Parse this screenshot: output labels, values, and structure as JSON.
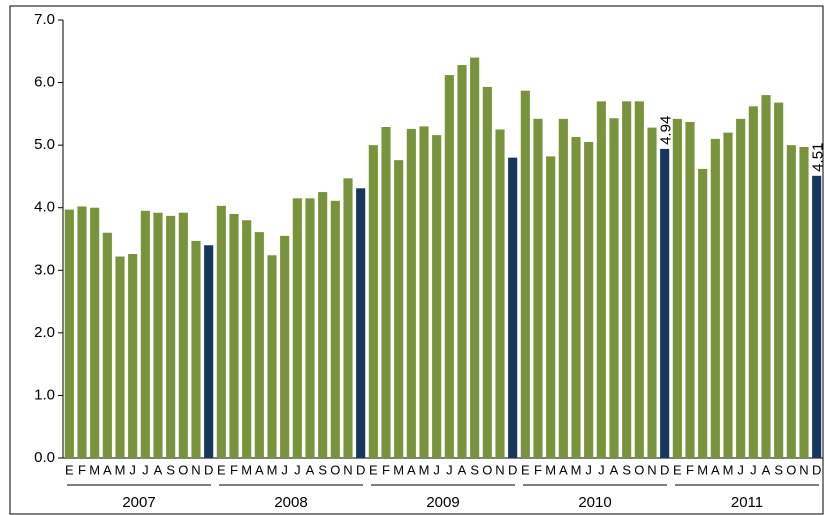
{
  "chart_data": {
    "type": "bar",
    "categories": [
      "E",
      "F",
      "M",
      "A",
      "M",
      "J",
      "J",
      "A",
      "S",
      "O",
      "N",
      "D",
      "E",
      "F",
      "M",
      "A",
      "M",
      "J",
      "J",
      "A",
      "S",
      "O",
      "N",
      "D",
      "E",
      "F",
      "M",
      "A",
      "M",
      "J",
      "J",
      "A",
      "S",
      "O",
      "N",
      "D",
      "E",
      "F",
      "M",
      "A",
      "M",
      "J",
      "J",
      "A",
      "S",
      "O",
      "N",
      "D",
      "E",
      "F",
      "M",
      "A",
      "M",
      "J",
      "J",
      "A",
      "S",
      "O",
      "N",
      "D"
    ],
    "x_groups": [
      "2007",
      "2008",
      "2009",
      "2010",
      "2011"
    ],
    "values": [
      3.97,
      4.02,
      4.0,
      3.6,
      3.22,
      3.26,
      3.95,
      3.92,
      3.87,
      3.92,
      3.47,
      3.4,
      4.03,
      3.9,
      3.8,
      3.61,
      3.24,
      3.55,
      4.15,
      4.15,
      4.25,
      4.11,
      4.47,
      4.31,
      5.0,
      5.29,
      4.76,
      5.26,
      5.3,
      5.16,
      6.12,
      6.28,
      6.4,
      5.93,
      5.25,
      4.8,
      5.87,
      5.42,
      4.82,
      5.42,
      5.13,
      5.05,
      5.7,
      5.43,
      5.7,
      5.7,
      5.28,
      4.94,
      5.42,
      5.37,
      4.62,
      5.1,
      5.2,
      5.42,
      5.62,
      5.8,
      5.68,
      5.0,
      4.97,
      4.51
    ],
    "value_labels": [
      null,
      null,
      null,
      null,
      null,
      null,
      null,
      null,
      null,
      null,
      null,
      null,
      null,
      null,
      null,
      null,
      null,
      null,
      null,
      null,
      null,
      null,
      null,
      null,
      null,
      null,
      null,
      null,
      null,
      null,
      null,
      null,
      null,
      null,
      null,
      null,
      null,
      null,
      null,
      null,
      null,
      null,
      null,
      null,
      null,
      null,
      null,
      "4.94",
      null,
      null,
      null,
      null,
      null,
      null,
      null,
      null,
      null,
      null,
      null,
      "4.51"
    ],
    "colors": [
      "#77933c",
      "#77933c",
      "#77933c",
      "#77933c",
      "#77933c",
      "#77933c",
      "#77933c",
      "#77933c",
      "#77933c",
      "#77933c",
      "#77933c",
      "#17375e",
      "#77933c",
      "#77933c",
      "#77933c",
      "#77933c",
      "#77933c",
      "#77933c",
      "#77933c",
      "#77933c",
      "#77933c",
      "#77933c",
      "#77933c",
      "#17375e",
      "#77933c",
      "#77933c",
      "#77933c",
      "#77933c",
      "#77933c",
      "#77933c",
      "#77933c",
      "#77933c",
      "#77933c",
      "#77933c",
      "#77933c",
      "#17375e",
      "#77933c",
      "#77933c",
      "#77933c",
      "#77933c",
      "#77933c",
      "#77933c",
      "#77933c",
      "#77933c",
      "#77933c",
      "#77933c",
      "#77933c",
      "#17375e",
      "#77933c",
      "#77933c",
      "#77933c",
      "#77933c",
      "#77933c",
      "#77933c",
      "#77933c",
      "#77933c",
      "#77933c",
      "#77933c",
      "#77933c",
      "#17375e"
    ],
    "ylim": [
      0,
      7
    ],
    "yticks": [
      {
        "value": 0,
        "label": "0.0"
      },
      {
        "value": 1,
        "label": "1.0"
      },
      {
        "value": 2,
        "label": "2.0"
      },
      {
        "value": 3,
        "label": "3.0"
      },
      {
        "value": 4,
        "label": "4.0"
      },
      {
        "value": 5,
        "label": "5.0"
      },
      {
        "value": 6,
        "label": "6.0"
      },
      {
        "value": 7,
        "label": "7.0"
      }
    ],
    "grid": false
  }
}
